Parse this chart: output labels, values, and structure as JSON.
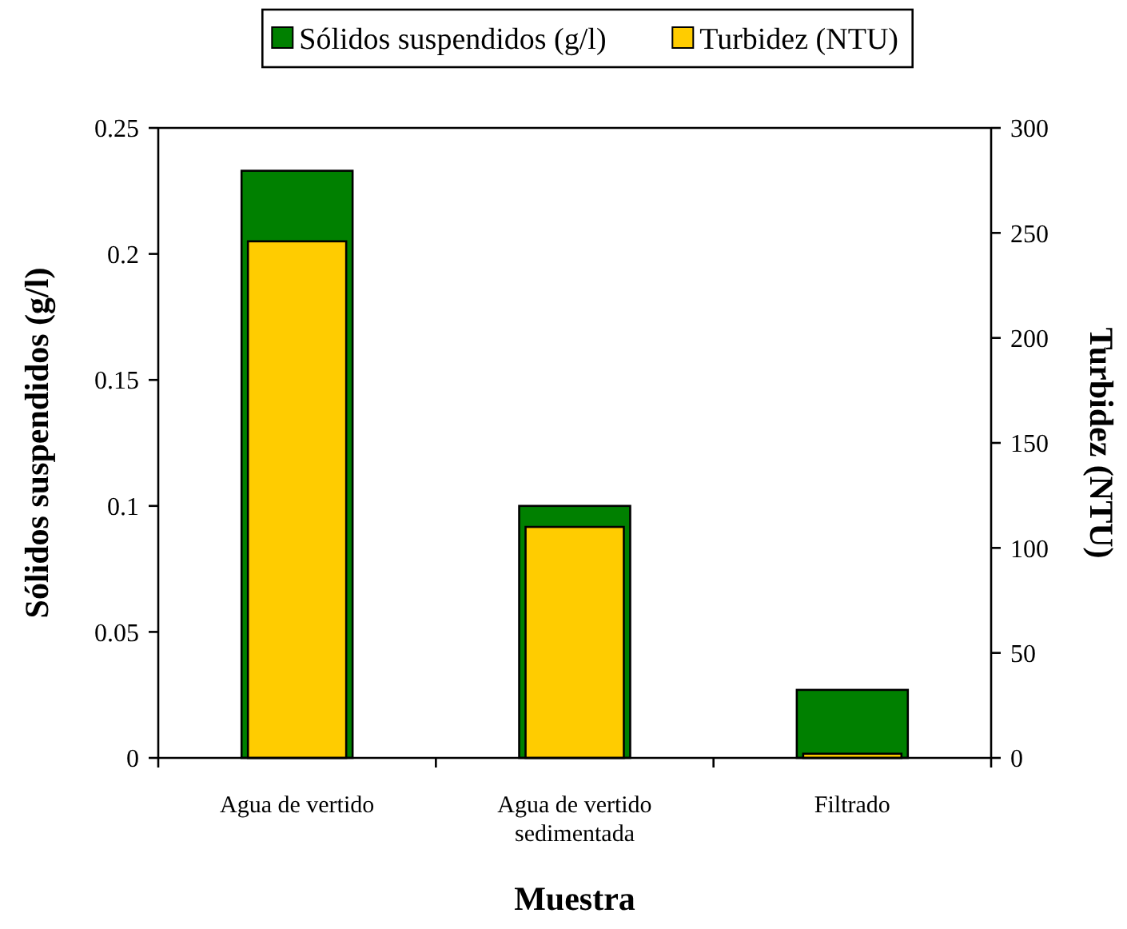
{
  "chart_data": {
    "type": "bar",
    "xlabel": "Muestra",
    "ylabel": "Sólidos suspendidos (g/l)",
    "y2label": "Turbidez (NTU)",
    "categories": [
      "Agua de vertido",
      "Agua de vertido sedimentada",
      "Filtrado"
    ],
    "series": [
      {
        "name": "Sólidos suspendidos (g/l)",
        "color": "#008000",
        "values": [
          0.233,
          0.1,
          0.027
        ]
      },
      {
        "name": "Turbidez (NTU)",
        "color": "#ffcc00",
        "axis": "y2",
        "values": [
          246,
          110,
          2
        ]
      }
    ],
    "ylim": [
      0,
      0.25
    ],
    "yticks": [
      0,
      0.05,
      0.1,
      0.15,
      0.2,
      0.25
    ],
    "y2lim": [
      0,
      300
    ],
    "y2ticks": [
      0,
      50,
      100,
      150,
      200,
      250,
      300
    ],
    "legend": "top",
    "grid": false
  }
}
